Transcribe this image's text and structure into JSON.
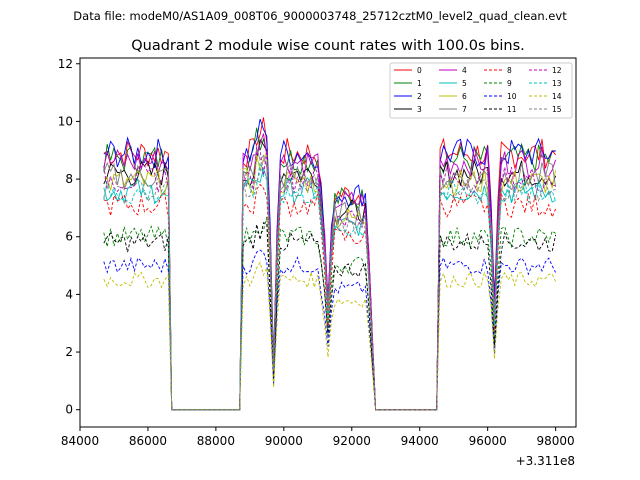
{
  "header": {
    "filename_line": "Data file: modeM0/AS1A09_008T06_9000003748_25712cztM0_level2_quad_clean.evt"
  },
  "chart_data": {
    "type": "line",
    "title": "Quadrant 2 module wise count rates with 100.0s bins.",
    "xlabel": "",
    "ylabel": "",
    "x_offset_label": "+3.311e8",
    "xlim": [
      84000,
      98600
    ],
    "ylim": [
      -0.6,
      12.2
    ],
    "x_ticks": [
      84000,
      86000,
      88000,
      90000,
      92000,
      94000,
      96000,
      98000
    ],
    "x_tick_labels": [
      "84000",
      "86000",
      "88000",
      "90000",
      "92000",
      "94000",
      "96000",
      "98000"
    ],
    "y_ticks": [
      0,
      2,
      4,
      6,
      8,
      10,
      12
    ],
    "y_tick_labels": [
      "0",
      "2",
      "4",
      "6",
      "8",
      "10",
      "12"
    ],
    "legend_position": "top-right",
    "segments": [
      {
        "start": 84700,
        "end": 86600
      },
      {
        "start": 88800,
        "end": 92600
      },
      {
        "start": 94600,
        "end": 98000
      }
    ],
    "time_profile": {
      "gap1": [
        86700,
        88700
      ],
      "gap2": [
        92700,
        94500
      ],
      "dips": [
        {
          "at": 89700,
          "factor": 0.18
        },
        {
          "at": 91300,
          "factor": 0.5
        },
        {
          "at": 92600,
          "factor": 0.3
        },
        {
          "at": 96200,
          "factor": 0.4
        }
      ]
    },
    "series": [
      {
        "name": "0",
        "color": "#ff0000",
        "dash": "solid",
        "level": 8.9
      },
      {
        "name": "1",
        "color": "#008000",
        "dash": "solid",
        "level": 8.7
      },
      {
        "name": "2",
        "color": "#0000ff",
        "dash": "solid",
        "level": 8.9
      },
      {
        "name": "3",
        "color": "#000000",
        "dash": "solid",
        "level": 8.2
      },
      {
        "name": "4",
        "color": "#bf00bf",
        "dash": "solid",
        "level": 8.6
      },
      {
        "name": "5",
        "color": "#00bfbf",
        "dash": "solid",
        "level": 7.6
      },
      {
        "name": "6",
        "color": "#bfbf00",
        "dash": "solid",
        "level": 7.9
      },
      {
        "name": "7",
        "color": "#808080",
        "dash": "solid",
        "level": 8.1
      },
      {
        "name": "8",
        "color": "#ff0000",
        "dash": "dashed",
        "level": 7.1
      },
      {
        "name": "9",
        "color": "#008000",
        "dash": "dashed",
        "level": 6.0
      },
      {
        "name": "10",
        "color": "#0000ff",
        "dash": "dashed",
        "level": 5.0
      },
      {
        "name": "11",
        "color": "#000000",
        "dash": "dashed",
        "level": 5.8
      },
      {
        "name": "12",
        "color": "#bf00bf",
        "dash": "dashed",
        "level": 8.0
      },
      {
        "name": "13",
        "color": "#00bfbf",
        "dash": "dashed",
        "level": 7.5
      },
      {
        "name": "14",
        "color": "#bfbf00",
        "dash": "dashed",
        "level": 4.5
      },
      {
        "name": "15",
        "color": "#808080",
        "dash": "dashed",
        "level": 7.7
      }
    ]
  }
}
